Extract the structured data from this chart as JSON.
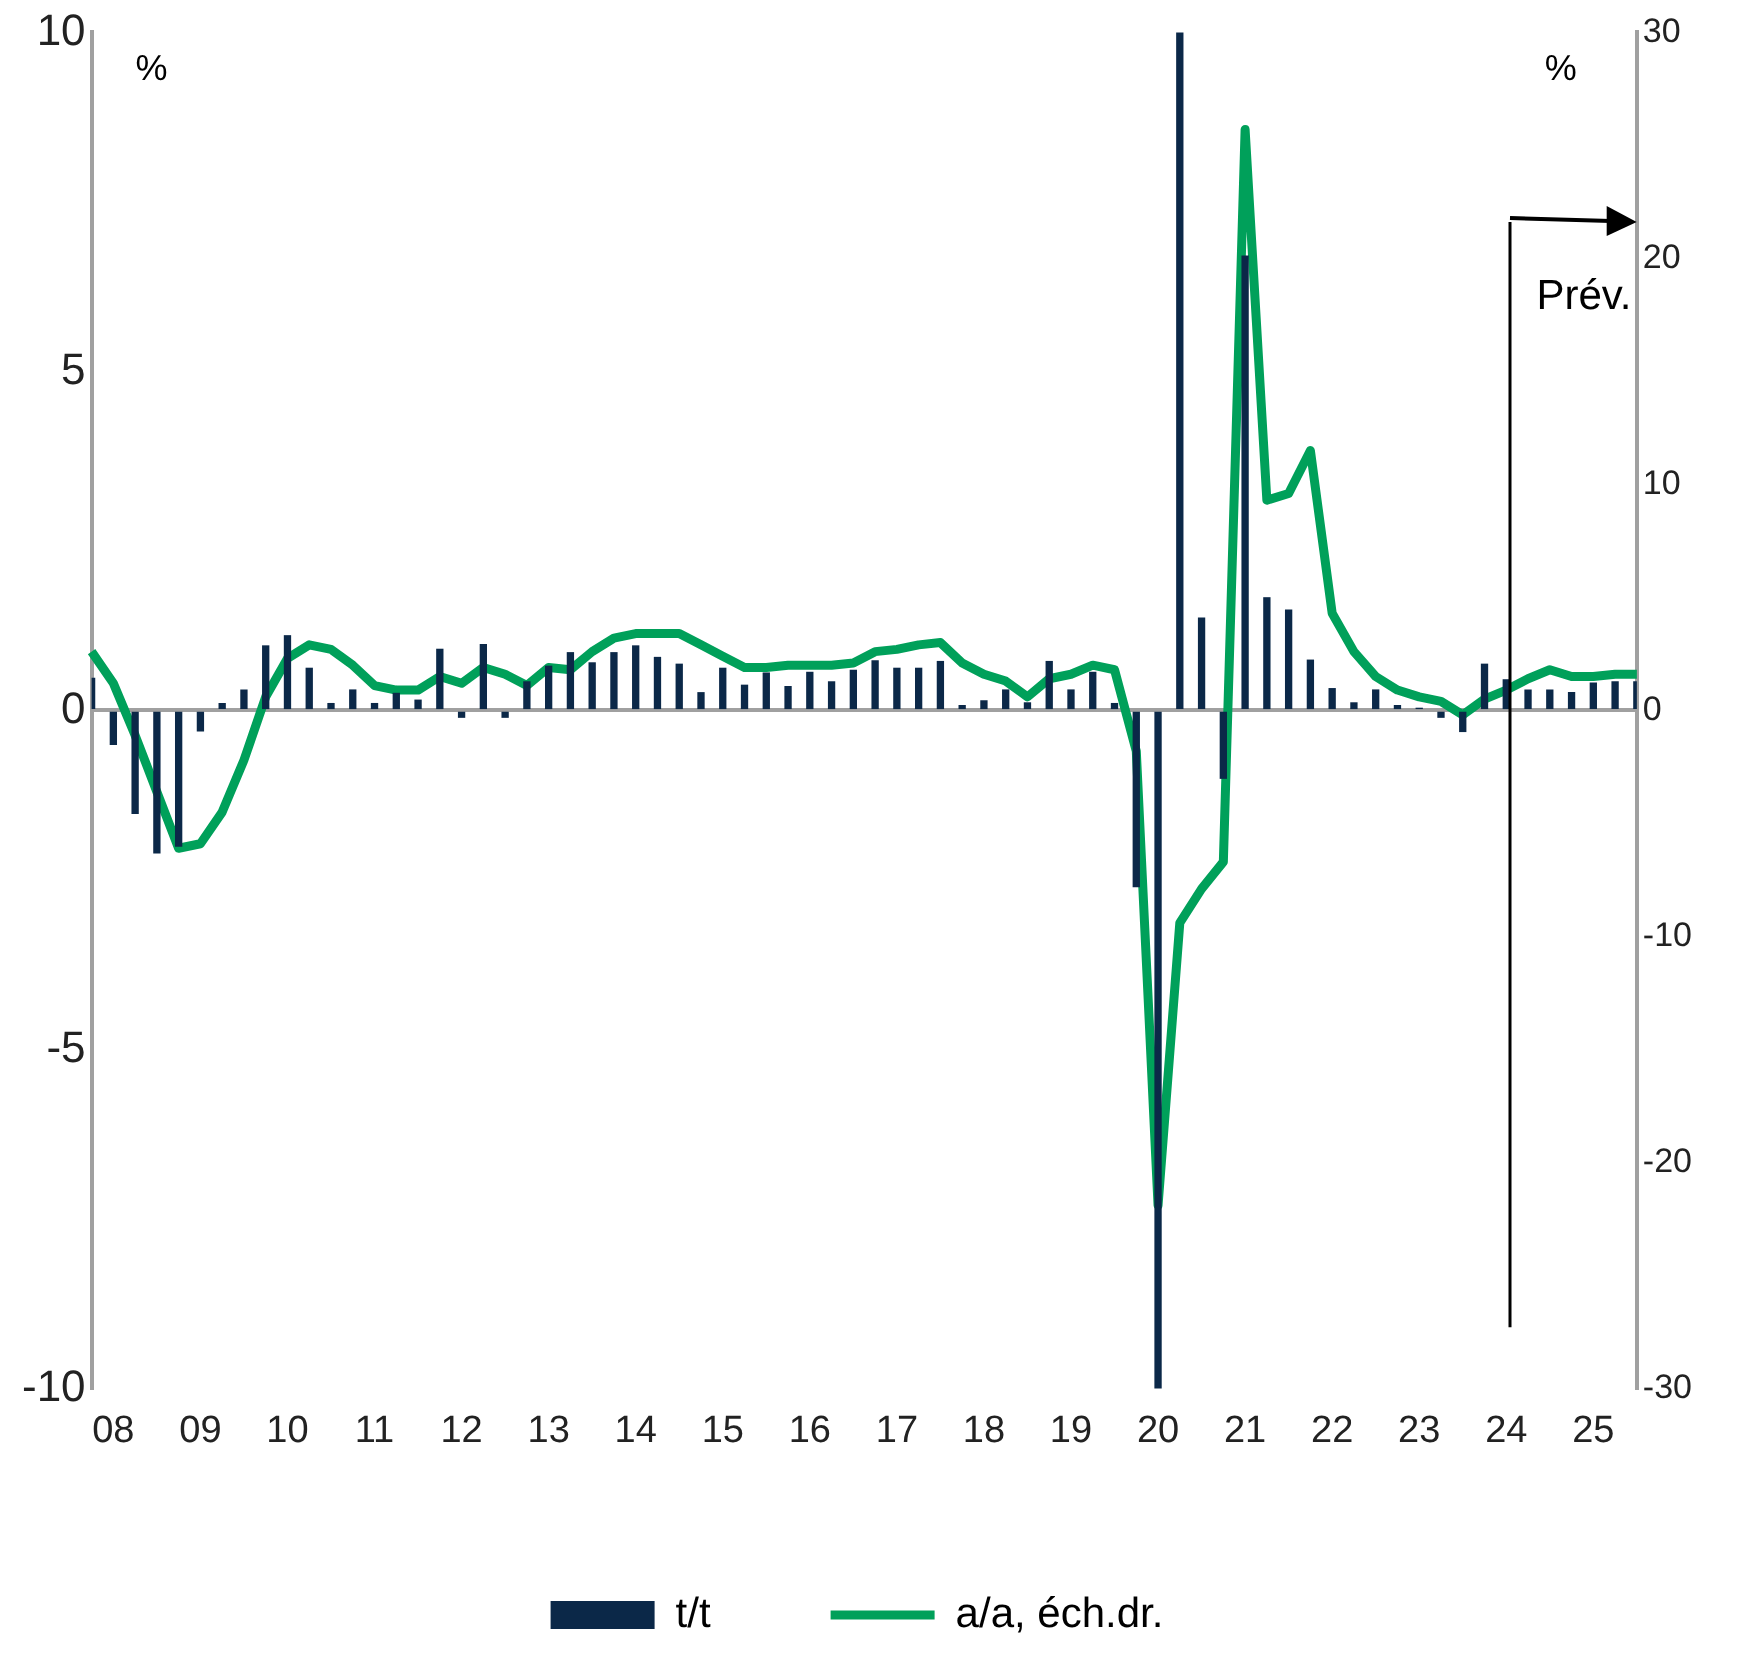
{
  "chart_data": {
    "type": "bar",
    "ylabel": "%",
    "y2label": "%",
    "categories": [
      null,
      "08",
      null,
      null,
      null,
      "09",
      null,
      null,
      null,
      "10",
      null,
      null,
      null,
      "11",
      null,
      null,
      null,
      "12",
      null,
      null,
      null,
      "13",
      null,
      null,
      null,
      "14",
      null,
      null,
      null,
      "15",
      null,
      null,
      null,
      "16",
      null,
      null,
      null,
      "17",
      null,
      null,
      null,
      "18",
      null,
      null,
      null,
      "19",
      null,
      null,
      null,
      "20",
      null,
      null,
      null,
      "21",
      null,
      null,
      null,
      "22",
      null,
      null,
      null,
      "23",
      null,
      null,
      null,
      "24",
      null,
      null,
      null,
      "25",
      null,
      null
    ],
    "series": [
      {
        "name": "t/t",
        "color": "#0b2848",
        "values": [
          0.47,
          -0.5,
          -1.52,
          -2.1,
          -2.0,
          -0.3,
          0.1,
          0.3,
          0.95,
          1.1,
          0.62,
          0.1,
          0.3,
          0.1,
          0.25,
          0.15,
          0.9,
          -0.1,
          0.97,
          -0.1,
          0.42,
          0.65,
          0.85,
          0.7,
          0.85,
          0.95,
          0.78,
          0.68,
          0.26,
          0.62,
          0.37,
          0.55,
          0.35,
          0.56,
          0.42,
          0.59,
          0.73,
          0.62,
          0.62,
          0.72,
          0.07,
          0.14,
          0.3,
          0.11,
          0.72,
          0.3,
          0.56,
          0.1,
          -2.6,
          -10,
          10,
          1.36,
          -1.0,
          6.7,
          1.66,
          1.48,
          0.74,
          0.32,
          0.11,
          0.3,
          0.07,
          0.03,
          -0.1,
          -0.31,
          0.68,
          0.45,
          0.3,
          0.3,
          0.26,
          0.4,
          0.42,
          0.42
        ]
      },
      {
        "name": "a/a, éch.dr.",
        "type": "line",
        "axis": "y2",
        "color": "#00a05a",
        "values": [
          2.6,
          1.2,
          -1.1,
          -3.6,
          -6.1,
          -5.9,
          -4.5,
          -2.2,
          0.6,
          2.3,
          2.9,
          2.7,
          2.0,
          1.1,
          0.9,
          0.9,
          1.5,
          1.2,
          1.9,
          1.6,
          1.1,
          1.9,
          1.8,
          2.6,
          3.2,
          3.4,
          3.4,
          3.4,
          2.9,
          2.4,
          1.9,
          1.9,
          2.0,
          2.0,
          2.0,
          2.1,
          2.6,
          2.7,
          2.9,
          3.0,
          2.1,
          1.6,
          1.3,
          0.6,
          1.4,
          1.6,
          2.0,
          1.8,
          -1.8,
          -21.9,
          -9.4,
          -7.9,
          -6.7,
          25.7,
          9.3,
          9.6,
          11.5,
          4.3,
          2.6,
          1.5,
          0.9,
          0.6,
          0.4,
          -0.2,
          0.5,
          0.9,
          1.4,
          1.8,
          1.5,
          1.5,
          1.6,
          1.6
        ]
      }
    ],
    "ylim": [
      -10,
      10
    ],
    "yticks": [
      -10,
      -5,
      0,
      5,
      10
    ],
    "y2lim": [
      -30,
      30
    ],
    "y2ticks": [
      -30,
      -20,
      -10,
      0,
      10,
      20,
      30
    ],
    "legend": "bottom",
    "marker": "none",
    "line_style": "solid",
    "annotations": [
      "Prév."
    ]
  }
}
